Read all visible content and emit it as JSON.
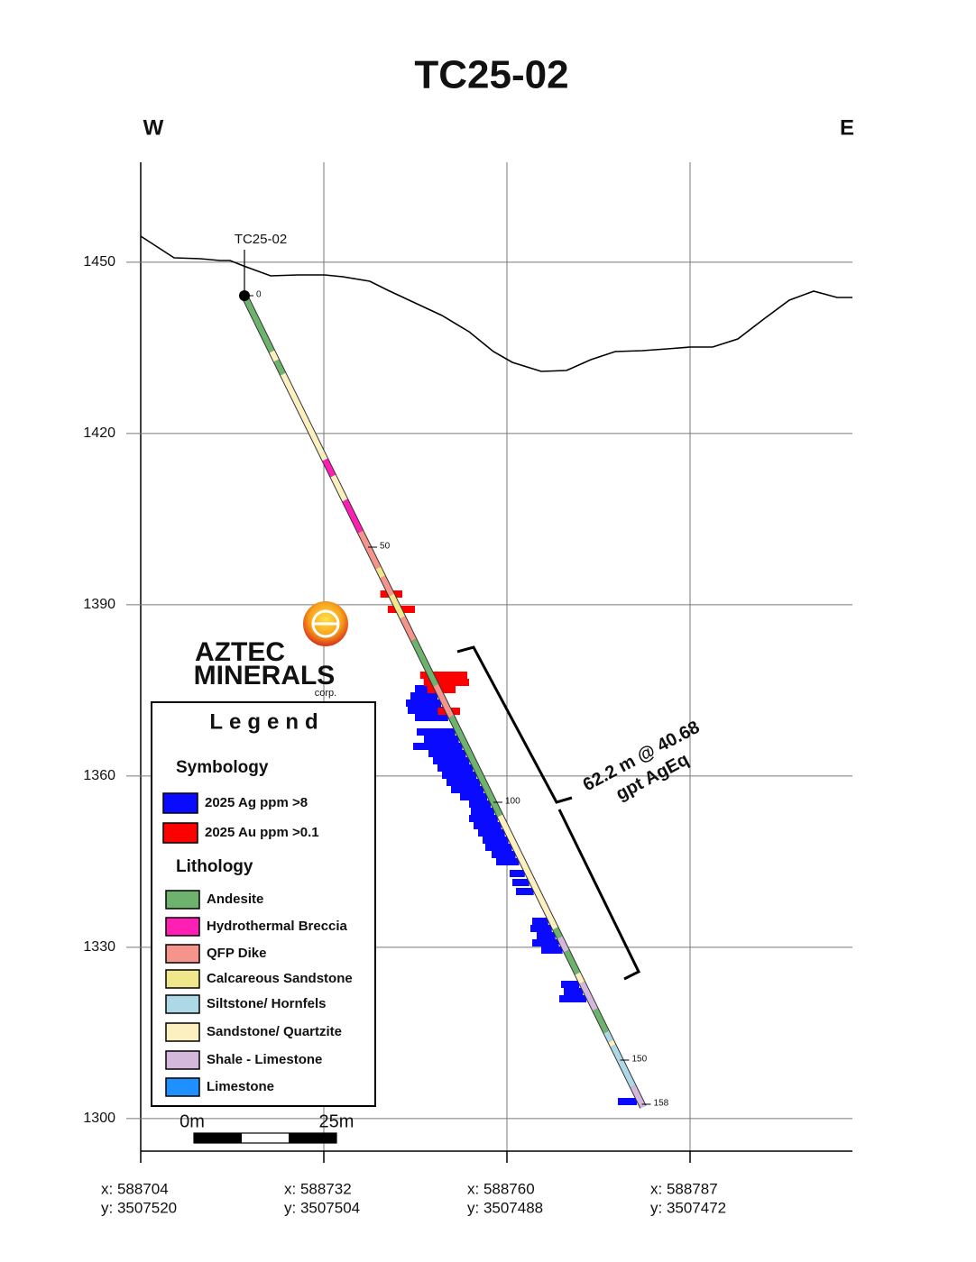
{
  "title": "TC25-02",
  "directions": [
    "W",
    "E"
  ],
  "elevation_axis": {
    "ylim": [
      1294.3,
      1467.5
    ],
    "yticks": [
      1300,
      1330,
      1360,
      1390,
      1420,
      1450
    ]
  },
  "x_labels": [
    {
      "x": "x: 588704",
      "y": "y: 3507520"
    },
    {
      "x": "x: 588732",
      "y": "y: 3507504"
    },
    {
      "x": "x: 588760",
      "y": "y: 3507488"
    },
    {
      "x": "x: 588787",
      "y": "y: 3507472"
    }
  ],
  "drill_hole": {
    "name": "TC25-02",
    "depth_labels": [
      0,
      50,
      100,
      150,
      158
    ]
  },
  "intercept": [
    "62.2 m @ 40.68",
    "gpt  AgEq"
  ],
  "logo": {
    "name": "AZTEC",
    "name2": "MINERALS",
    "suffix": "corp."
  },
  "legend": {
    "title": "Legend",
    "symbology_title": "Symbology",
    "symbology": [
      {
        "label": "2025 Ag ppm >8",
        "color": "#0a0aff"
      },
      {
        "label": "2025 Au ppm >0.1",
        "color": "#ff0000"
      }
    ],
    "lithology_title": "Lithology",
    "lithology": [
      {
        "label": "Andesite",
        "color": "#6db36d"
      },
      {
        "label": "Hydrothermal Breccia",
        "color": "#ff1fb4"
      },
      {
        "label": "QFP Dike",
        "color": "#f4948a"
      },
      {
        "label": "Calcareous Sandstone",
        "color": "#f0e68c"
      },
      {
        "label": "Siltstone/ Hornfels",
        "color": "#add8e6"
      },
      {
        "label": "Sandstone/ Quartzite",
        "color": "#fdf0c0"
      },
      {
        "label": "Shale - Limestone",
        "color": "#d4b8dc"
      },
      {
        "label": "Limestone",
        "color": "#1e90ff"
      }
    ]
  },
  "scale_bar": [
    "0m",
    "25m"
  ]
}
